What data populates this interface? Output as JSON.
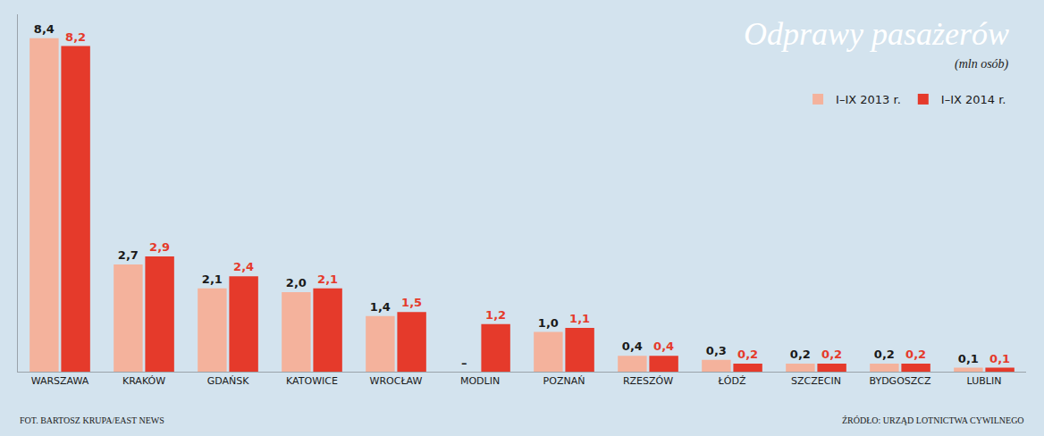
{
  "chart_data": {
    "type": "bar",
    "title": "Odprawy pasażerów",
    "subtitle": "(mln osób)",
    "categories": [
      "WARSZAWA",
      "KRAKÓW",
      "GDAŃSK",
      "KATOWICE",
      "WROCŁAW",
      "MODLIN",
      "POZNAŃ",
      "RZESZÓW",
      "ŁÓDŹ",
      "SZCZECIN",
      "BYDGOSZCZ",
      "LUBLIN"
    ],
    "series": [
      {
        "name": "I–IX 2013 r.",
        "color": "#f4b29c",
        "values": [
          8.4,
          2.7,
          2.1,
          2.0,
          1.4,
          null,
          1.0,
          0.4,
          0.3,
          0.2,
          0.2,
          0.1
        ],
        "value_labels": [
          "8,4",
          "2,7",
          "2,1",
          "2,0",
          "1,4",
          "–",
          "1,0",
          "0,4",
          "0,3",
          "0,2",
          "0,2",
          "0,1"
        ]
      },
      {
        "name": "I–IX 2014 r.",
        "color": "#e53a2b",
        "values": [
          8.2,
          2.9,
          2.4,
          2.1,
          1.5,
          1.2,
          1.1,
          0.4,
          0.2,
          0.2,
          0.2,
          0.1
        ],
        "value_labels": [
          "8,2",
          "2,9",
          "2,4",
          "2,1",
          "1,5",
          "1,2",
          "1,1",
          "0,4",
          "0,2",
          "0,2",
          "0,2",
          "0,1"
        ]
      }
    ],
    "ylim": [
      0,
      9
    ],
    "tick_labels": "x",
    "data_labels": true,
    "grid": false,
    "legend": "top-right",
    "credit": "FOT. BARTOSZ KRUPA/EAST NEWS",
    "source": "ŹRÓDŁO: URZĄD LOTNICTWA CYWILNEGO"
  }
}
